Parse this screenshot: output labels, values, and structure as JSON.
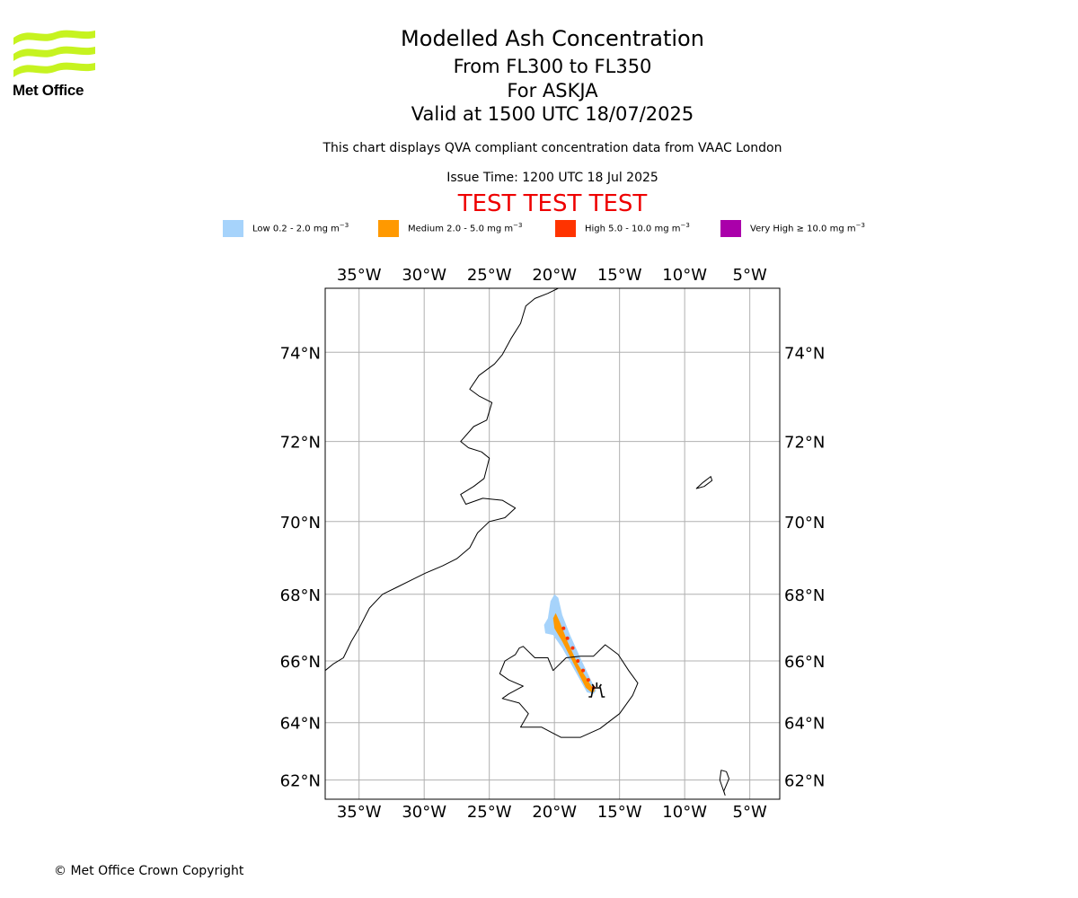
{
  "logo": {
    "text": "Met Office",
    "icon": "met-office-waves-logo",
    "color": "#c6f320"
  },
  "header": {
    "title": "Modelled Ash Concentration",
    "levels": "From FL300 to FL350",
    "volcano": "For ASKJA",
    "valid": "Valid at 1500 UTC 18/07/2025",
    "note": "This chart displays QVA compliant concentration data from VAAC London",
    "issue_time": "Issue Time: 1200 UTC 18 Jul 2025",
    "test_banner": "TEST TEST TEST",
    "test_color": "#ee0000"
  },
  "legend": [
    {
      "label": "Low 0.2 - 2.0 mg m",
      "unit_exp": "−3",
      "color": "#a6d3fb"
    },
    {
      "label": "Medium 2.0 - 5.0 mg m",
      "unit_exp": "−3",
      "color": "#ff9900"
    },
    {
      "label": "High 5.0 - 10.0 mg m",
      "unit_exp": "−3",
      "color": "#ff3300"
    },
    {
      "label": "Very High  ≥  10.0 mg m",
      "unit_exp": "−3",
      "color": "#aa00aa"
    }
  ],
  "map": {
    "projection": "mercator",
    "lon_range": [
      -37.6,
      -2.7
    ],
    "lat_range": [
      61.3,
      75.3
    ],
    "lon_ticks": [
      -35,
      -30,
      -25,
      -20,
      -15,
      -10,
      -5
    ],
    "lon_labels": [
      "35°W",
      "30°W",
      "25°W",
      "20°W",
      "15°W",
      "10°W",
      "5°W"
    ],
    "lat_ticks": [
      62,
      64,
      66,
      68,
      70,
      72,
      74
    ],
    "lat_labels": [
      "62°N",
      "64°N",
      "66°N",
      "68°N",
      "70°N",
      "72°N",
      "74°N"
    ],
    "grid": true,
    "grid_color": "#b0b0b0",
    "volcano_marker": {
      "name": "ASKJA",
      "icon": "volcano-icon",
      "lon": -16.75,
      "lat": 65.03
    },
    "ash_plume": {
      "low": [
        [
          -20.5,
          67.3
        ],
        [
          -20.3,
          67.8
        ],
        [
          -20.0,
          68.0
        ],
        [
          -19.7,
          67.9
        ],
        [
          -19.4,
          67.4
        ],
        [
          -18.8,
          66.8
        ],
        [
          -17.9,
          66.0
        ],
        [
          -17.2,
          65.4
        ],
        [
          -16.8,
          65.05
        ],
        [
          -17.0,
          64.95
        ],
        [
          -17.5,
          65.0
        ],
        [
          -18.3,
          65.6
        ],
        [
          -19.4,
          66.4
        ],
        [
          -20.1,
          66.8
        ],
        [
          -20.7,
          66.85
        ],
        [
          -20.8,
          67.1
        ]
      ],
      "medium": [
        [
          -20.1,
          67.3
        ],
        [
          -19.9,
          67.45
        ],
        [
          -19.6,
          67.2
        ],
        [
          -19.0,
          66.6
        ],
        [
          -18.2,
          65.9
        ],
        [
          -17.3,
          65.3
        ],
        [
          -16.9,
          65.05
        ],
        [
          -17.1,
          64.98
        ],
        [
          -17.6,
          65.15
        ],
        [
          -18.5,
          65.9
        ],
        [
          -19.4,
          66.6
        ],
        [
          -20.0,
          67.0
        ]
      ],
      "high_dots": [
        [
          -19.3,
          67.0
        ],
        [
          -19.0,
          66.7
        ],
        [
          -18.6,
          66.4
        ],
        [
          -18.2,
          66.0
        ],
        [
          -17.8,
          65.7
        ],
        [
          -17.4,
          65.4
        ],
        [
          -17.0,
          65.15
        ]
      ]
    },
    "coastlines": {
      "greenland": [
        [
          -37.6,
          65.7
        ],
        [
          -37.0,
          65.9
        ],
        [
          -36.2,
          66.1
        ],
        [
          -35.6,
          66.6
        ],
        [
          -35.0,
          67.0
        ],
        [
          -34.2,
          67.6
        ],
        [
          -33.2,
          68.0
        ],
        [
          -32.1,
          68.2
        ],
        [
          -31.0,
          68.4
        ],
        [
          -29.9,
          68.6
        ],
        [
          -28.6,
          68.8
        ],
        [
          -27.5,
          69.0
        ],
        [
          -26.5,
          69.3
        ],
        [
          -25.9,
          69.7
        ],
        [
          -25.0,
          70.0
        ],
        [
          -23.8,
          70.1
        ],
        [
          -23.0,
          70.35
        ],
        [
          -24.0,
          70.55
        ],
        [
          -25.5,
          70.6
        ],
        [
          -26.8,
          70.45
        ],
        [
          -27.2,
          70.7
        ],
        [
          -26.2,
          70.9
        ],
        [
          -25.4,
          71.1
        ],
        [
          -25.0,
          71.6
        ],
        [
          -25.6,
          71.75
        ],
        [
          -26.6,
          71.85
        ],
        [
          -27.2,
          72.0
        ],
        [
          -26.2,
          72.35
        ],
        [
          -25.2,
          72.5
        ],
        [
          -24.8,
          72.9
        ],
        [
          -25.8,
          73.05
        ],
        [
          -26.5,
          73.2
        ],
        [
          -25.8,
          73.5
        ],
        [
          -24.6,
          73.75
        ],
        [
          -24.0,
          73.95
        ],
        [
          -23.3,
          74.3
        ],
        [
          -22.6,
          74.6
        ],
        [
          -22.2,
          74.95
        ],
        [
          -21.5,
          75.1
        ],
        [
          -20.5,
          75.2
        ],
        [
          -19.7,
          75.3
        ]
      ],
      "iceland": [
        [
          -22.7,
          66.4
        ],
        [
          -23.0,
          66.2
        ],
        [
          -23.8,
          66.0
        ],
        [
          -24.2,
          65.6
        ],
        [
          -23.5,
          65.4
        ],
        [
          -22.4,
          65.2
        ],
        [
          -23.5,
          64.95
        ],
        [
          -24.0,
          64.8
        ],
        [
          -22.7,
          64.65
        ],
        [
          -22.0,
          64.3
        ],
        [
          -22.6,
          63.85
        ],
        [
          -21.0,
          63.85
        ],
        [
          -19.5,
          63.5
        ],
        [
          -18.0,
          63.5
        ],
        [
          -16.5,
          63.8
        ],
        [
          -15.0,
          64.3
        ],
        [
          -14.0,
          64.9
        ],
        [
          -13.6,
          65.3
        ],
        [
          -14.3,
          65.7
        ],
        [
          -15.1,
          66.2
        ],
        [
          -16.1,
          66.5
        ],
        [
          -17.0,
          66.15
        ],
        [
          -18.0,
          66.15
        ],
        [
          -19.1,
          66.1
        ],
        [
          -20.1,
          65.7
        ],
        [
          -20.5,
          66.1
        ],
        [
          -21.5,
          66.1
        ],
        [
          -22.4,
          66.45
        ],
        [
          -22.7,
          66.4
        ]
      ],
      "jan_mayen": [
        [
          -9.1,
          70.85
        ],
        [
          -8.6,
          71.0
        ],
        [
          -8.0,
          71.15
        ],
        [
          -7.9,
          71.05
        ],
        [
          -8.5,
          70.9
        ],
        [
          -9.1,
          70.85
        ]
      ],
      "faroe": [
        [
          -7.2,
          62.35
        ],
        [
          -6.8,
          62.3
        ],
        [
          -6.6,
          62.05
        ],
        [
          -7.0,
          61.6
        ],
        [
          -6.9,
          61.45
        ],
        [
          -7.3,
          62.0
        ],
        [
          -7.2,
          62.35
        ]
      ]
    }
  },
  "footer": {
    "copyright": "© Met Office Crown Copyright"
  }
}
